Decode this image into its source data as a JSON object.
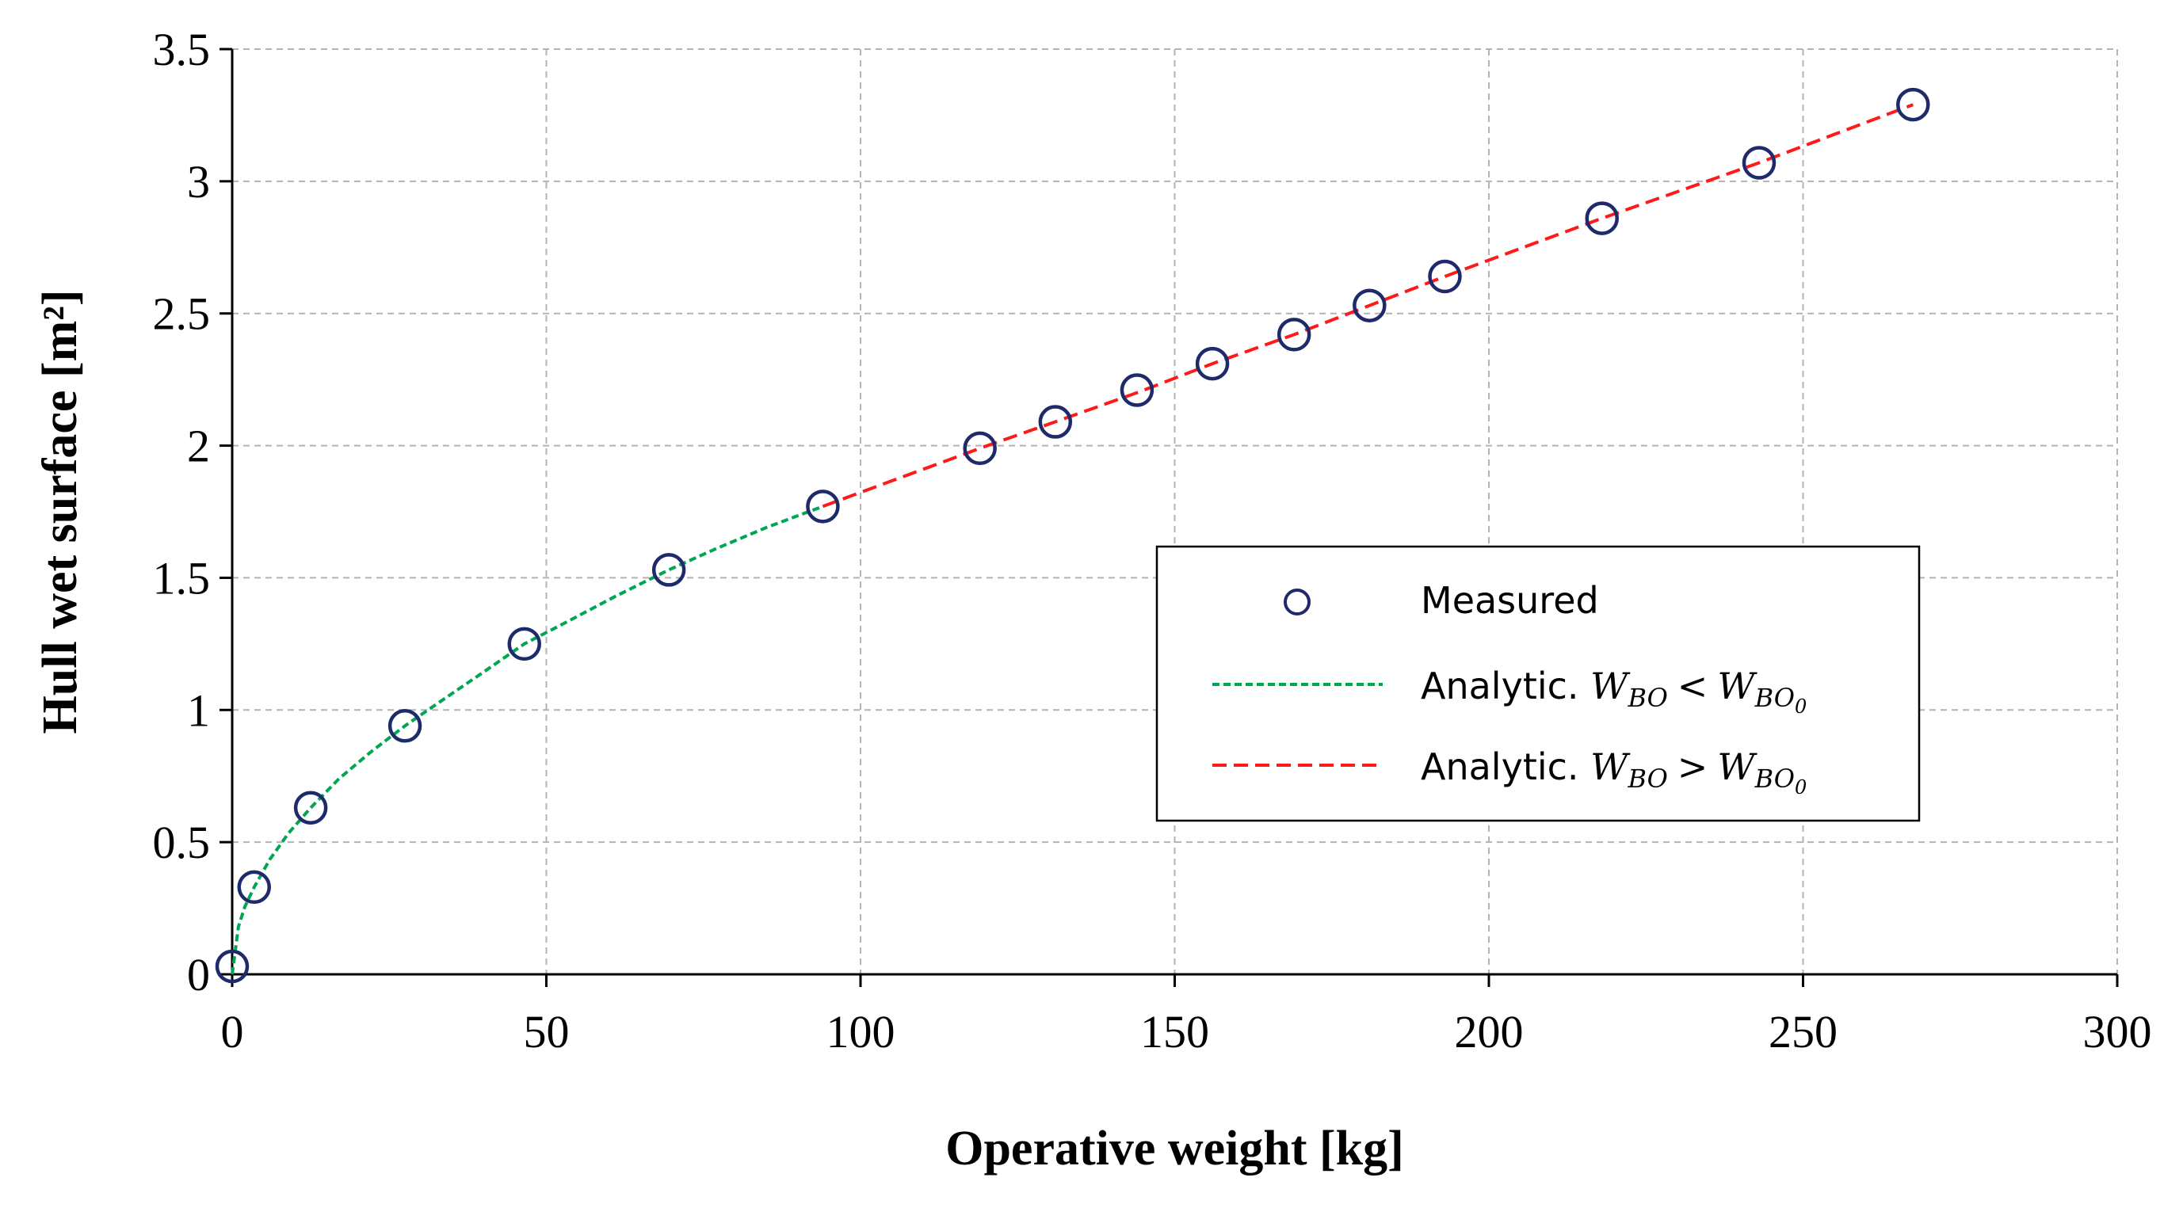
{
  "chart_data": {
    "type": "scatter",
    "title": "",
    "xlabel": "Operative weight [kg]",
    "ylabel": "Hull wet surface [m²]",
    "xlim": [
      0,
      300
    ],
    "ylim": [
      0,
      3.5
    ],
    "xticks": [
      "0",
      "50",
      "100",
      "150",
      "200",
      "250",
      "300"
    ],
    "yticks": [
      "0",
      "0.5",
      "1",
      "1.5",
      "2",
      "2.5",
      "3",
      "3.5"
    ],
    "grid": true,
    "legend_position": "center-right",
    "series": [
      {
        "name": "Measured",
        "kind": "markers",
        "marker": "open-circle",
        "color": "#1f2a6b",
        "points": [
          [
            0,
            0.03
          ],
          [
            3.5,
            0.33
          ],
          [
            12.5,
            0.63
          ],
          [
            27.5,
            0.94
          ],
          [
            46.5,
            1.25
          ],
          [
            69.5,
            1.53
          ],
          [
            94,
            1.77
          ],
          [
            119,
            1.99
          ],
          [
            131,
            2.09
          ],
          [
            144,
            2.21
          ],
          [
            156,
            2.31
          ],
          [
            169,
            2.42
          ],
          [
            181,
            2.53
          ],
          [
            193,
            2.64
          ],
          [
            218,
            2.86
          ],
          [
            243,
            3.07
          ],
          [
            267.5,
            3.29
          ]
        ]
      },
      {
        "name": "Analytic. W_BO < W_BO0",
        "legend_label": {
          "prefix": "Analytic. ",
          "lhs": "W",
          "lhs_sub": "BO",
          "op": "<",
          "rhs": "W",
          "rhs_sub": "BO",
          "rhs_subsub": "0"
        },
        "kind": "line",
        "style": "dashed",
        "color": "#00a651",
        "points": [
          [
            0,
            0.0
          ],
          [
            1,
            0.18
          ],
          [
            2,
            0.255
          ],
          [
            3.5,
            0.33
          ],
          [
            6,
            0.435
          ],
          [
            9,
            0.535
          ],
          [
            12.5,
            0.63
          ],
          [
            17,
            0.74
          ],
          [
            22,
            0.84
          ],
          [
            27.5,
            0.94
          ],
          [
            33,
            1.03
          ],
          [
            39.5,
            1.135
          ],
          [
            46.5,
            1.25
          ],
          [
            53,
            1.33
          ],
          [
            61,
            1.43
          ],
          [
            69.5,
            1.53
          ],
          [
            77,
            1.61
          ],
          [
            85,
            1.69
          ],
          [
            94,
            1.77
          ]
        ]
      },
      {
        "name": "Analytic. W_BO > W_BO0",
        "legend_label": {
          "prefix": "Analytic. ",
          "lhs": "W",
          "lhs_sub": "BO",
          "op": ">",
          "rhs": "W",
          "rhs_sub": "BO",
          "rhs_subsub": "0"
        },
        "kind": "line",
        "style": "dashed",
        "color": "#ff1a1a",
        "points": [
          [
            94,
            1.77
          ],
          [
            119,
            1.99
          ],
          [
            131,
            2.09
          ],
          [
            144,
            2.2
          ],
          [
            156,
            2.31
          ],
          [
            169,
            2.42
          ],
          [
            181,
            2.53
          ],
          [
            193,
            2.64
          ],
          [
            218,
            2.86
          ],
          [
            243,
            3.07
          ],
          [
            267.5,
            3.29
          ]
        ]
      }
    ]
  }
}
